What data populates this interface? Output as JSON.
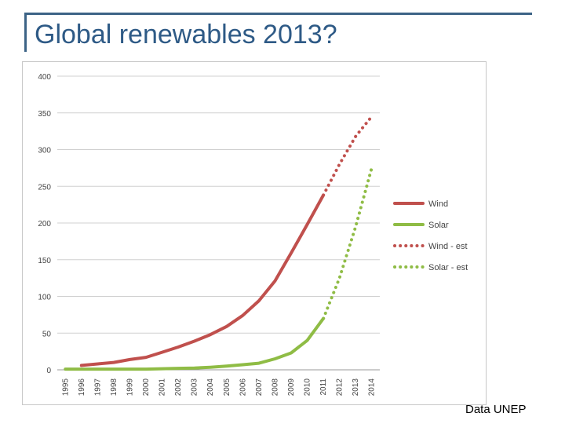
{
  "slide": {
    "title": "Global renewables 2013?",
    "source": "Data UNEP",
    "accent_color": "#3c6386"
  },
  "chart_data": {
    "type": "line",
    "title": "",
    "xlabel": "",
    "ylabel": "",
    "ylim": [
      0,
      400
    ],
    "yticks": [
      0,
      50,
      100,
      150,
      200,
      250,
      300,
      350,
      400
    ],
    "grid": true,
    "legend_position": "right",
    "categories": [
      "1995",
      "1996",
      "1997",
      "1998",
      "1999",
      "2000",
      "2001",
      "2002",
      "2003",
      "2004",
      "2005",
      "2006",
      "2007",
      "2008",
      "2009",
      "2010",
      "2011",
      "2012",
      "2013",
      "2014"
    ],
    "series": [
      {
        "name": "Wind",
        "style": "solid",
        "color": "#c0504d",
        "values": [
          null,
          6,
          8,
          10,
          14,
          17,
          24,
          31,
          39,
          48,
          59,
          74,
          94,
          121,
          159,
          198,
          238,
          null,
          null,
          null
        ]
      },
      {
        "name": "Solar",
        "style": "solid",
        "color": "#8fbc45",
        "values": [
          1,
          1,
          1,
          1,
          1,
          1,
          1.5,
          2,
          2.5,
          3.5,
          5,
          7,
          9,
          15,
          23,
          40,
          70,
          null,
          null,
          null
        ]
      },
      {
        "name": "Wind - est",
        "style": "dotted",
        "color": "#c0504d",
        "values": [
          null,
          null,
          null,
          null,
          null,
          null,
          null,
          null,
          null,
          null,
          null,
          null,
          null,
          null,
          null,
          null,
          238,
          280,
          318,
          345
        ]
      },
      {
        "name": "Solar - est",
        "style": "dotted",
        "color": "#8fbc45",
        "values": [
          null,
          null,
          null,
          null,
          null,
          null,
          null,
          null,
          null,
          null,
          null,
          null,
          null,
          null,
          null,
          null,
          70,
          125,
          195,
          275
        ]
      }
    ]
  }
}
